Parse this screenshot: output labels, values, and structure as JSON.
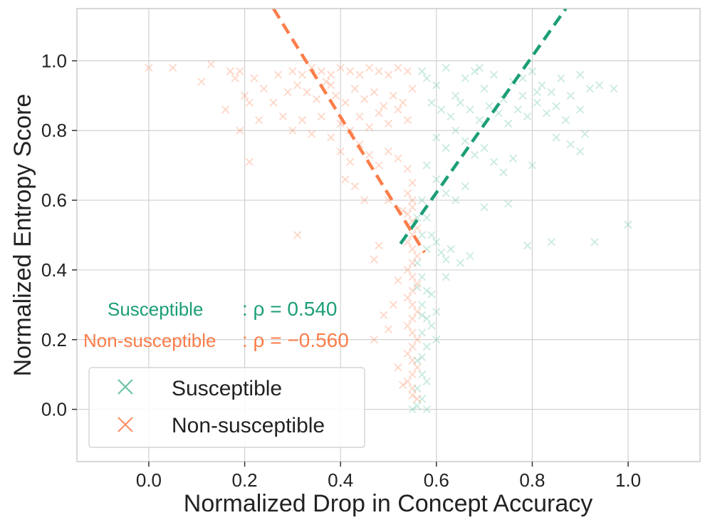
{
  "chart_data": {
    "type": "scatter",
    "xlabel": "Normalized Drop in Concept Accuracy",
    "ylabel": "Normalized Entropy Score",
    "xlim": [
      -0.15,
      1.15
    ],
    "ylim": [
      -0.15,
      1.15
    ],
    "xticks": [
      0.0,
      0.2,
      0.4,
      0.6,
      0.8,
      1.0
    ],
    "yticks": [
      0.0,
      0.2,
      0.4,
      0.6,
      0.8,
      1.0
    ],
    "xtick_labels": [
      "0.0",
      "0.2",
      "0.4",
      "0.6",
      "0.8",
      "1.0"
    ],
    "ytick_labels": [
      "0.0",
      "0.2",
      "0.4",
      "0.6",
      "0.8",
      "1.0"
    ],
    "grid": true,
    "legend": {
      "placement": "lower-left",
      "entries": [
        {
          "label": "Susceptible",
          "marker": "x",
          "color": "#66c2a5"
        },
        {
          "label": "Non-susceptible",
          "marker": "x",
          "color": "#fc8d62"
        }
      ]
    },
    "annotations": [
      {
        "series": "Susceptible",
        "label": "Susceptible",
        "text": ": ρ = 0.540",
        "color": "#1b9e77",
        "rho": 0.54
      },
      {
        "series": "Non-susceptible",
        "label": "Non-susceptible",
        "text": ": ρ = −0.560",
        "color": "#fc7d4a",
        "rho": -0.56
      }
    ],
    "series": [
      {
        "name": "Susceptible",
        "marker": "x",
        "color": "#66c2a5",
        "alpha": 0.35,
        "fit_line": {
          "color": "#1b9e77",
          "style": "dashed",
          "x": [
            0.525,
            0.87
          ],
          "y": [
            0.475,
            1.15
          ]
        },
        "points": [
          [
            0.57,
            0.97
          ],
          [
            0.58,
            0.95
          ],
          [
            0.6,
            0.93
          ],
          [
            0.62,
            0.98
          ],
          [
            0.64,
            0.9
          ],
          [
            0.66,
            0.95
          ],
          [
            0.68,
            0.97
          ],
          [
            0.7,
            0.92
          ],
          [
            0.72,
            0.96
          ],
          [
            0.74,
            0.89
          ],
          [
            0.76,
            0.94
          ],
          [
            0.78,
            0.9
          ],
          [
            0.8,
            0.97
          ],
          [
            0.82,
            0.93
          ],
          [
            0.84,
            0.91
          ],
          [
            0.86,
            0.95
          ],
          [
            0.88,
            0.9
          ],
          [
            0.9,
            0.96
          ],
          [
            0.92,
            0.92
          ],
          [
            0.97,
            0.92
          ],
          [
            0.59,
            0.88
          ],
          [
            0.61,
            0.86
          ],
          [
            0.63,
            0.84
          ],
          [
            0.65,
            0.88
          ],
          [
            0.67,
            0.86
          ],
          [
            0.69,
            0.83
          ],
          [
            0.71,
            0.87
          ],
          [
            0.73,
            0.85
          ],
          [
            0.75,
            0.82
          ],
          [
            0.77,
            0.86
          ],
          [
            0.79,
            0.84
          ],
          [
            0.81,
            0.88
          ],
          [
            0.83,
            0.85
          ],
          [
            0.85,
            0.87
          ],
          [
            0.87,
            0.83
          ],
          [
            0.9,
            0.86
          ],
          [
            0.91,
            0.79
          ],
          [
            0.9,
            0.74
          ],
          [
            0.88,
            0.76
          ],
          [
            0.85,
            0.78
          ],
          [
            0.6,
            0.78
          ],
          [
            0.62,
            0.75
          ],
          [
            0.64,
            0.8
          ],
          [
            0.66,
            0.77
          ],
          [
            0.68,
            0.73
          ],
          [
            0.7,
            0.75
          ],
          [
            0.72,
            0.71
          ],
          [
            0.74,
            0.68
          ],
          [
            0.76,
            0.72
          ],
          [
            0.8,
            0.7
          ],
          [
            0.58,
            0.7
          ],
          [
            0.6,
            0.66
          ],
          [
            0.62,
            0.62
          ],
          [
            0.64,
            0.6
          ],
          [
            0.66,
            0.64
          ],
          [
            0.7,
            0.58
          ],
          [
            0.75,
            0.59
          ],
          [
            0.79,
            0.47
          ],
          [
            0.84,
            0.48
          ],
          [
            0.93,
            0.48
          ],
          [
            0.57,
            0.6
          ],
          [
            0.58,
            0.55
          ],
          [
            0.59,
            0.5
          ],
          [
            0.6,
            0.48
          ],
          [
            0.61,
            0.45
          ],
          [
            0.62,
            0.43
          ],
          [
            0.63,
            0.46
          ],
          [
            0.65,
            0.42
          ],
          [
            0.67,
            0.44
          ],
          [
            0.62,
            0.38
          ],
          [
            0.56,
            0.42
          ],
          [
            0.57,
            0.38
          ],
          [
            0.58,
            0.34
          ],
          [
            0.57,
            0.3
          ],
          [
            0.58,
            0.26
          ],
          [
            0.57,
            0.22
          ],
          [
            0.58,
            0.18
          ],
          [
            0.56,
            0.14
          ],
          [
            0.57,
            0.1
          ],
          [
            0.56,
            0.06
          ],
          [
            0.59,
            0.33
          ],
          [
            0.6,
            0.28
          ],
          [
            0.59,
            0.24
          ],
          [
            0.6,
            0.2
          ],
          [
            0.58,
            0.08
          ],
          [
            0.57,
            0.03
          ],
          [
            0.56,
            0.01
          ],
          [
            0.58,
            0.0
          ],
          [
            0.55,
            0.0
          ],
          [
            0.57,
            0.15
          ],
          [
            0.56,
            0.55
          ],
          [
            0.57,
            0.5
          ],
          [
            0.58,
            0.46
          ],
          [
            0.56,
            0.35
          ],
          [
            0.57,
            0.27
          ],
          [
            0.78,
            0.95
          ],
          [
            0.81,
            0.91
          ],
          [
            1.0,
            0.53
          ],
          [
            0.94,
            0.93
          ],
          [
            0.69,
            0.98
          ]
        ]
      },
      {
        "name": "Non-susceptible",
        "marker": "x",
        "color": "#fc8d62",
        "alpha": 0.35,
        "fit_line": {
          "color": "#fc7d4a",
          "style": "dashed",
          "x": [
            0.26,
            0.575
          ],
          "y": [
            1.15,
            0.45
          ]
        },
        "points": [
          [
            -0.0,
            0.98
          ],
          [
            0.05,
            0.98
          ],
          [
            0.11,
            0.94
          ],
          [
            0.13,
            0.99
          ],
          [
            0.17,
            0.97
          ],
          [
            0.18,
            0.95
          ],
          [
            0.19,
            0.97
          ],
          [
            0.2,
            0.9
          ],
          [
            0.21,
            0.88
          ],
          [
            0.22,
            0.95
          ],
          [
            0.23,
            0.83
          ],
          [
            0.16,
            0.86
          ],
          [
            0.19,
            0.8
          ],
          [
            0.21,
            0.71
          ],
          [
            0.3,
            0.97
          ],
          [
            0.32,
            0.96
          ],
          [
            0.34,
            0.98
          ],
          [
            0.36,
            0.97
          ],
          [
            0.38,
            0.96
          ],
          [
            0.4,
            0.98
          ],
          [
            0.42,
            0.97
          ],
          [
            0.44,
            0.96
          ],
          [
            0.46,
            0.98
          ],
          [
            0.48,
            0.97
          ],
          [
            0.5,
            0.96
          ],
          [
            0.52,
            0.98
          ],
          [
            0.54,
            0.97
          ],
          [
            0.31,
            0.93
          ],
          [
            0.33,
            0.91
          ],
          [
            0.35,
            0.89
          ],
          [
            0.37,
            0.94
          ],
          [
            0.39,
            0.9
          ],
          [
            0.41,
            0.88
          ],
          [
            0.43,
            0.92
          ],
          [
            0.45,
            0.89
          ],
          [
            0.47,
            0.91
          ],
          [
            0.49,
            0.87
          ],
          [
            0.51,
            0.9
          ],
          [
            0.53,
            0.88
          ],
          [
            0.55,
            0.92
          ],
          [
            0.26,
            0.88
          ],
          [
            0.28,
            0.84
          ],
          [
            0.3,
            0.8
          ],
          [
            0.32,
            0.83
          ],
          [
            0.34,
            0.79
          ],
          [
            0.36,
            0.84
          ],
          [
            0.38,
            0.78
          ],
          [
            0.4,
            0.82
          ],
          [
            0.42,
            0.8
          ],
          [
            0.44,
            0.84
          ],
          [
            0.46,
            0.81
          ],
          [
            0.48,
            0.85
          ],
          [
            0.5,
            0.82
          ],
          [
            0.52,
            0.86
          ],
          [
            0.54,
            0.83
          ],
          [
            0.4,
            0.74
          ],
          [
            0.42,
            0.71
          ],
          [
            0.44,
            0.76
          ],
          [
            0.46,
            0.73
          ],
          [
            0.48,
            0.7
          ],
          [
            0.5,
            0.74
          ],
          [
            0.52,
            0.72
          ],
          [
            0.54,
            0.69
          ],
          [
            0.41,
            0.66
          ],
          [
            0.43,
            0.64
          ],
          [
            0.5,
            0.6
          ],
          [
            0.53,
            0.57
          ],
          [
            0.55,
            0.65
          ],
          [
            0.54,
            0.62
          ],
          [
            0.55,
            0.6
          ],
          [
            0.55,
            0.58
          ],
          [
            0.54,
            0.56
          ],
          [
            0.55,
            0.54
          ],
          [
            0.56,
            0.52
          ],
          [
            0.55,
            0.5
          ],
          [
            0.54,
            0.48
          ],
          [
            0.55,
            0.46
          ],
          [
            0.56,
            0.44
          ],
          [
            0.55,
            0.42
          ],
          [
            0.54,
            0.4
          ],
          [
            0.55,
            0.38
          ],
          [
            0.56,
            0.36
          ],
          [
            0.55,
            0.34
          ],
          [
            0.54,
            0.32
          ],
          [
            0.55,
            0.3
          ],
          [
            0.56,
            0.28
          ],
          [
            0.55,
            0.26
          ],
          [
            0.54,
            0.24
          ],
          [
            0.55,
            0.22
          ],
          [
            0.56,
            0.2
          ],
          [
            0.55,
            0.18
          ],
          [
            0.54,
            0.16
          ],
          [
            0.55,
            0.14
          ],
          [
            0.56,
            0.12
          ],
          [
            0.55,
            0.1
          ],
          [
            0.54,
            0.08
          ],
          [
            0.55,
            0.06
          ],
          [
            0.55,
            0.04
          ],
          [
            0.56,
            0.03
          ],
          [
            0.31,
            0.5
          ],
          [
            0.47,
            0.43
          ],
          [
            0.48,
            0.47
          ],
          [
            0.52,
            0.37
          ],
          [
            0.51,
            0.3
          ],
          [
            0.49,
            0.27
          ],
          [
            0.5,
            0.23
          ],
          [
            0.47,
            0.2
          ],
          [
            0.52,
            0.12
          ],
          [
            0.53,
            0.07
          ],
          [
            0.45,
            0.6
          ],
          [
            0.38,
            0.93
          ],
          [
            0.27,
            0.96
          ],
          [
            0.29,
            0.91
          ],
          [
            0.24,
            0.92
          ]
        ]
      }
    ]
  }
}
